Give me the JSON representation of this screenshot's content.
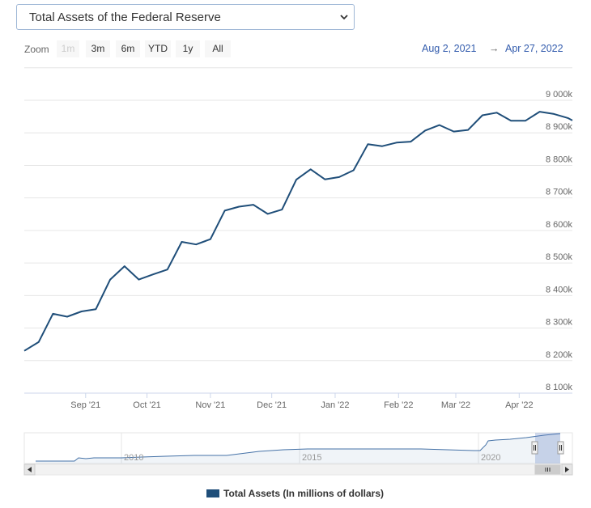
{
  "selector": {
    "value": "Total Assets of the Federal Reserve"
  },
  "zoom": {
    "label": "Zoom",
    "buttons": [
      "1m",
      "3m",
      "6m",
      "YTD",
      "1y",
      "All"
    ],
    "disabled": [
      "1m"
    ]
  },
  "range": {
    "from": "Aug 2, 2021",
    "arrow": "→",
    "to": "Apr 27, 2022"
  },
  "legend": {
    "label": "Total Assets (In millions of dollars)",
    "color": "#1f4e79"
  },
  "chart_data": {
    "type": "line",
    "series": [
      {
        "name": "Total Assets (In millions of dollars)",
        "color": "#1f4e79",
        "x": [
          "2021-08-02",
          "2021-08-09",
          "2021-08-16",
          "2021-08-23",
          "2021-08-30",
          "2021-09-06",
          "2021-09-13",
          "2021-09-20",
          "2021-09-27",
          "2021-10-04",
          "2021-10-11",
          "2021-10-18",
          "2021-10-25",
          "2021-11-01",
          "2021-11-08",
          "2021-11-15",
          "2021-11-22",
          "2021-11-29",
          "2021-12-06",
          "2021-12-13",
          "2021-12-20",
          "2021-12-27",
          "2022-01-03",
          "2022-01-10",
          "2022-01-17",
          "2022-01-24",
          "2022-01-31",
          "2022-02-07",
          "2022-02-14",
          "2022-02-21",
          "2022-02-28",
          "2022-03-07",
          "2022-03-14",
          "2022-03-21",
          "2022-03-28",
          "2022-04-04",
          "2022-04-11",
          "2022-04-18",
          "2022-04-25",
          "2022-04-27"
        ],
        "values": [
          8230,
          8257,
          8344,
          8335,
          8351,
          8358,
          8449,
          8490,
          8449,
          8465,
          8480,
          8565,
          8557,
          8573,
          8661,
          8673,
          8679,
          8651,
          8664,
          8756,
          8788,
          8757,
          8764,
          8785,
          8865,
          8859,
          8870,
          8873,
          8907,
          8924,
          8904,
          8909,
          8954,
          8962,
          8937,
          8937,
          8965,
          8958,
          8945,
          8938
        ]
      }
    ],
    "x_ticks": [
      "Sep '21",
      "Oct '21",
      "Nov '21",
      "Dec '21",
      "Jan '22",
      "Feb '22",
      "Mar '22",
      "Apr '22"
    ],
    "y_ticks": [
      "8 100k",
      "8 200k",
      "8 300k",
      "8 400k",
      "8 500k",
      "8 600k",
      "8 700k",
      "8 800k",
      "8 900k",
      "9 000k"
    ],
    "ylim": [
      8100000,
      9000000
    ],
    "grid": true,
    "navigator": {
      "labels": [
        "2010",
        "2015",
        "2020"
      ]
    }
  }
}
